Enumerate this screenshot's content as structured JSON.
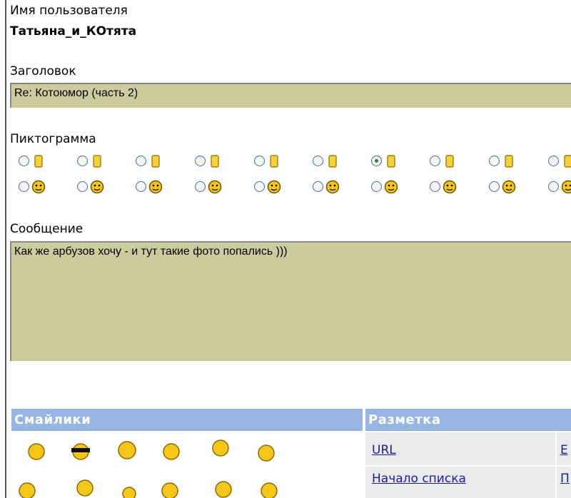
{
  "form": {
    "username_label": "Имя пользователя",
    "username": "Татьяна_и_КОтята",
    "subject_label": "Заголовок",
    "subject": "Re: Котоюмор (часть 2)",
    "icon_label": "Пиктограмма",
    "message_label": "Сообщение",
    "message": "Как же арбузов хочу - и тут такие фото попались )))"
  },
  "smilies": {
    "title": "Смайлики"
  },
  "markup": {
    "title": "Разметка",
    "rows": [
      [
        "URL",
        "E"
      ],
      [
        "Начало списка",
        "П"
      ]
    ]
  }
}
